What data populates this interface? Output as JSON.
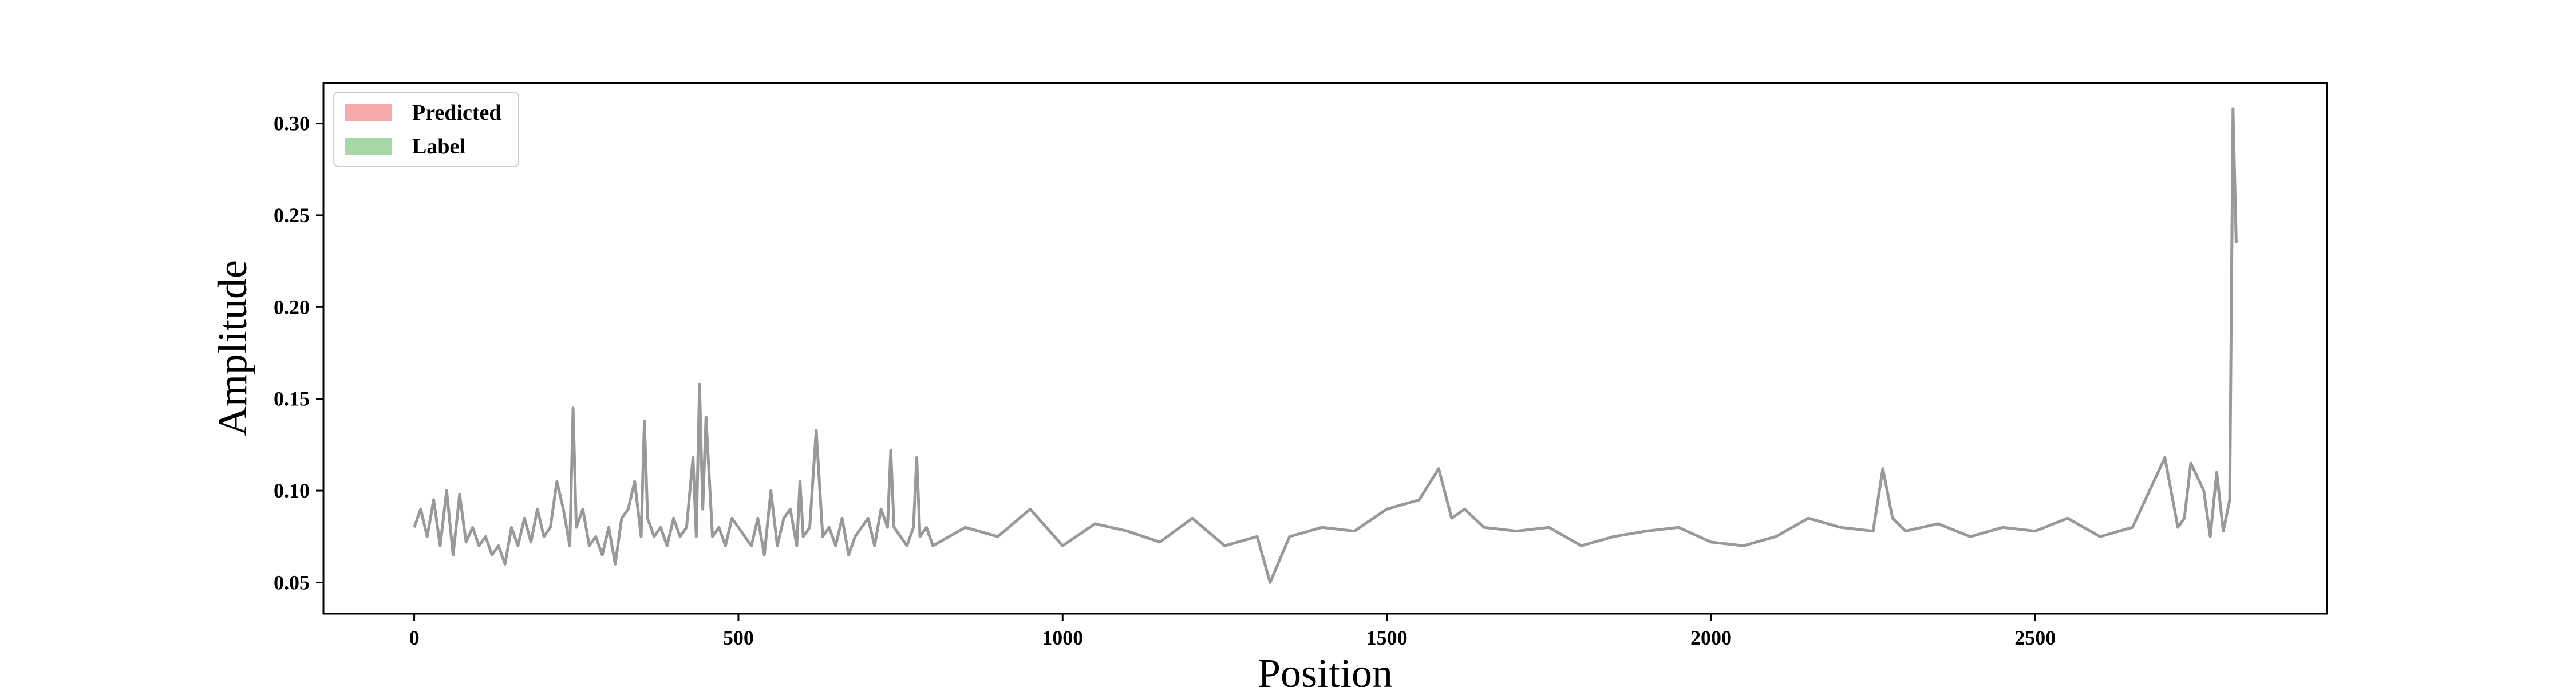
{
  "chart_data": {
    "type": "line",
    "title": "",
    "xlabel": "Position",
    "ylabel": "Amplitude",
    "xlim": [
      -140,
      2950
    ],
    "ylim": [
      0.033,
      0.322
    ],
    "x_ticks": [
      0,
      500,
      1000,
      1500,
      2000,
      2500
    ],
    "y_ticks": [
      0.05,
      0.1,
      0.15,
      0.2,
      0.25,
      0.3
    ],
    "x_tick_labels": [
      "0",
      "500",
      "1000",
      "1500",
      "2000",
      "2500"
    ],
    "y_tick_labels": [
      "0.05",
      "0.10",
      "0.15",
      "0.20",
      "0.25",
      "0.30"
    ],
    "grid": false,
    "legend": {
      "placement": "top-left",
      "entries": [
        {
          "label": "Predicted",
          "color": "#f7a8a8"
        },
        {
          "label": "Label",
          "color": "#a8d8a8"
        }
      ]
    },
    "series": [
      {
        "color": "#999999",
        "x": [
          0,
          10,
          20,
          30,
          40,
          50,
          60,
          70,
          80,
          90,
          100,
          110,
          120,
          130,
          140,
          150,
          160,
          170,
          180,
          190,
          200,
          210,
          220,
          230,
          240,
          245,
          250,
          260,
          270,
          280,
          290,
          300,
          310,
          320,
          330,
          340,
          350,
          355,
          360,
          370,
          380,
          390,
          400,
          410,
          420,
          430,
          435,
          440,
          445,
          450,
          460,
          470,
          480,
          490,
          500,
          510,
          520,
          530,
          540,
          550,
          560,
          570,
          580,
          590,
          595,
          600,
          610,
          620,
          630,
          640,
          650,
          660,
          670,
          680,
          690,
          700,
          710,
          720,
          730,
          735,
          740,
          750,
          760,
          770,
          775,
          780,
          790,
          800,
          850,
          900,
          950,
          1000,
          1050,
          1100,
          1150,
          1200,
          1250,
          1300,
          1320,
          1350,
          1400,
          1450,
          1500,
          1550,
          1580,
          1600,
          1620,
          1650,
          1700,
          1750,
          1800,
          1850,
          1900,
          1950,
          2000,
          2050,
          2100,
          2150,
          2200,
          2250,
          2265,
          2280,
          2300,
          2350,
          2400,
          2450,
          2500,
          2550,
          2600,
          2650,
          2700,
          2720,
          2730,
          2740,
          2760,
          2770,
          2780,
          2790,
          2800,
          2805,
          2810
        ],
        "y": [
          0.08,
          0.09,
          0.075,
          0.095,
          0.07,
          0.1,
          0.065,
          0.098,
          0.072,
          0.08,
          0.07,
          0.075,
          0.065,
          0.07,
          0.06,
          0.08,
          0.07,
          0.085,
          0.072,
          0.09,
          0.075,
          0.08,
          0.105,
          0.09,
          0.07,
          0.145,
          0.08,
          0.09,
          0.07,
          0.075,
          0.065,
          0.08,
          0.06,
          0.085,
          0.09,
          0.105,
          0.075,
          0.138,
          0.085,
          0.075,
          0.08,
          0.07,
          0.085,
          0.075,
          0.08,
          0.118,
          0.075,
          0.158,
          0.09,
          0.14,
          0.075,
          0.08,
          0.07,
          0.085,
          0.08,
          0.075,
          0.07,
          0.085,
          0.065,
          0.1,
          0.07,
          0.085,
          0.09,
          0.07,
          0.105,
          0.075,
          0.08,
          0.133,
          0.075,
          0.08,
          0.07,
          0.085,
          0.065,
          0.075,
          0.08,
          0.085,
          0.07,
          0.09,
          0.08,
          0.122,
          0.08,
          0.075,
          0.07,
          0.08,
          0.118,
          0.075,
          0.08,
          0.07,
          0.08,
          0.075,
          0.09,
          0.07,
          0.082,
          0.078,
          0.072,
          0.085,
          0.07,
          0.075,
          0.05,
          0.075,
          0.08,
          0.078,
          0.09,
          0.095,
          0.112,
          0.085,
          0.09,
          0.08,
          0.078,
          0.08,
          0.07,
          0.075,
          0.078,
          0.08,
          0.072,
          0.07,
          0.075,
          0.085,
          0.08,
          0.078,
          0.112,
          0.085,
          0.078,
          0.082,
          0.075,
          0.08,
          0.078,
          0.085,
          0.075,
          0.08,
          0.118,
          0.08,
          0.085,
          0.115,
          0.1,
          0.075,
          0.11,
          0.078,
          0.095,
          0.308,
          0.235
        ]
      }
    ]
  }
}
